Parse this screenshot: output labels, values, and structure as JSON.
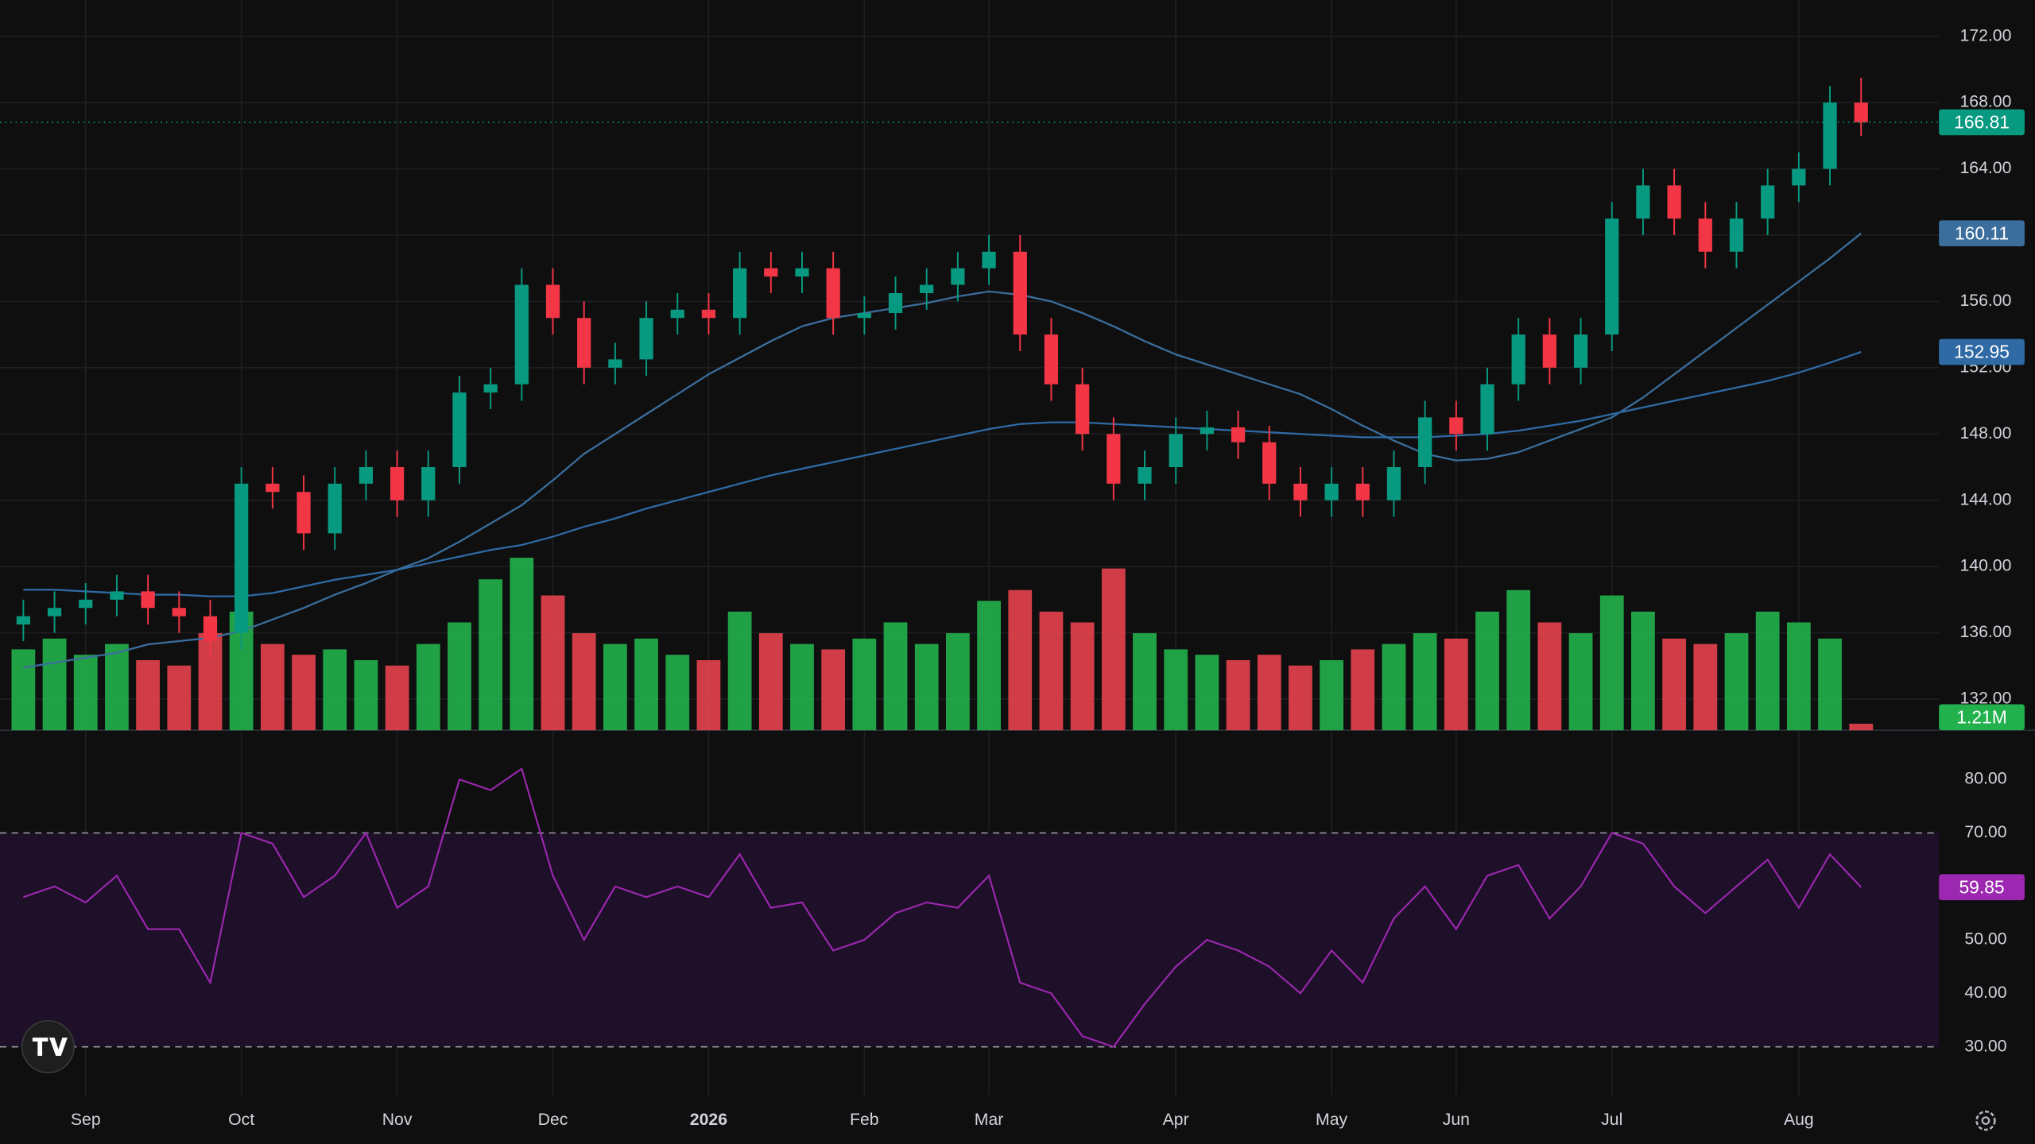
{
  "chart_data": {
    "type": "candlestick",
    "categories": [
      null,
      null,
      "Sep",
      null,
      null,
      null,
      null,
      "Oct",
      null,
      null,
      null,
      null,
      "Nov",
      null,
      null,
      null,
      null,
      "Dec",
      null,
      null,
      null,
      null,
      "2026",
      null,
      null,
      null,
      null,
      "Feb",
      null,
      null,
      null,
      "Mar",
      null,
      null,
      null,
      null,
      null,
      "Apr",
      null,
      null,
      null,
      null,
      "May",
      null,
      null,
      null,
      "Jun",
      null,
      null,
      null,
      null,
      "Jul",
      null,
      null,
      null,
      null,
      null,
      "Aug",
      null,
      null
    ],
    "open": [
      136.5,
      137.0,
      137.5,
      138.0,
      138.5,
      137.5,
      137.0,
      136.0,
      145.0,
      144.5,
      142.0,
      145.0,
      146.0,
      144.0,
      146.0,
      150.5,
      151.0,
      157.0,
      155.0,
      152.0,
      152.5,
      155.0,
      155.5,
      155.0,
      158.0,
      157.5,
      158.0,
      155.0,
      155.3,
      156.5,
      157.0,
      158.0,
      159.0,
      154.0,
      151.0,
      148.0,
      145.0,
      146.0,
      148.0,
      148.4,
      147.5,
      145.0,
      144.0,
      145.0,
      144.0,
      146.0,
      149.0,
      148.0,
      151.0,
      154.0,
      152.0,
      154.0,
      161.0,
      163.0,
      161.0,
      159.0,
      161.0,
      163.0,
      164.0,
      168.0
    ],
    "high": [
      138.0,
      138.5,
      139.0,
      139.5,
      139.5,
      138.5,
      138.0,
      146.0,
      146.0,
      145.5,
      146.0,
      147.0,
      147.0,
      147.0,
      151.5,
      152.0,
      158.0,
      158.0,
      156.0,
      153.5,
      156.0,
      156.5,
      156.5,
      159.0,
      159.0,
      159.0,
      159.0,
      156.3,
      157.5,
      158.0,
      159.0,
      160.0,
      160.0,
      155.0,
      152.0,
      149.0,
      147.0,
      149.0,
      149.4,
      149.4,
      148.5,
      146.0,
      146.0,
      146.0,
      147.0,
      150.0,
      150.0,
      152.0,
      155.0,
      155.0,
      155.0,
      162.0,
      164.0,
      164.0,
      162.0,
      162.0,
      164.0,
      165.0,
      169.0,
      169.5
    ],
    "low": [
      135.5,
      136.0,
      136.5,
      137.0,
      136.5,
      136.0,
      134.5,
      135.0,
      143.5,
      141.0,
      141.0,
      144.0,
      143.0,
      143.0,
      145.0,
      149.5,
      150.0,
      154.0,
      151.0,
      151.0,
      151.5,
      154.0,
      154.0,
      154.0,
      156.5,
      156.5,
      154.0,
      154.0,
      154.3,
      155.5,
      156.0,
      157.0,
      153.0,
      150.0,
      147.0,
      144.0,
      144.0,
      145.0,
      147.0,
      146.5,
      144.0,
      143.0,
      143.0,
      143.0,
      143.0,
      145.0,
      147.0,
      147.0,
      150.0,
      151.0,
      151.0,
      153.0,
      160.0,
      160.0,
      158.0,
      158.0,
      160.0,
      162.0,
      163.0,
      166.0
    ],
    "close": [
      137.0,
      137.5,
      138.0,
      138.5,
      137.5,
      137.0,
      135.5,
      145.0,
      144.5,
      142.0,
      145.0,
      146.0,
      144.0,
      146.0,
      150.5,
      151.0,
      157.0,
      155.0,
      152.0,
      152.5,
      155.0,
      155.5,
      155.0,
      158.0,
      157.5,
      158.0,
      155.0,
      155.3,
      156.5,
      157.0,
      158.0,
      159.0,
      154.0,
      151.0,
      148.0,
      145.0,
      146.0,
      148.0,
      148.4,
      147.5,
      145.0,
      144.0,
      145.0,
      144.0,
      146.0,
      149.0,
      148.0,
      151.0,
      154.0,
      152.0,
      154.0,
      161.0,
      163.0,
      161.0,
      159.0,
      161.0,
      163.0,
      164.0,
      168.0,
      166.81
    ],
    "up_color": "#089981",
    "down_color": "#f23645",
    "last_price_color": "#089981",
    "ylim": [
      130.12,
      174.19
    ],
    "yticks": [
      {
        "value": 132,
        "label": "132.00"
      },
      {
        "value": 136,
        "label": "136.00"
      },
      {
        "value": 140,
        "label": "140.00"
      },
      {
        "value": 144,
        "label": "144.00"
      },
      {
        "value": 148,
        "label": "148.00"
      },
      {
        "value": 152,
        "label": "152.00"
      },
      {
        "value": 156,
        "label": "156.00"
      },
      {
        "value": 160,
        "label": "160.00"
      },
      {
        "value": 164,
        "label": "164.00"
      },
      {
        "value": 168,
        "label": "168.00"
      },
      {
        "value": 172,
        "label": "172.00"
      }
    ],
    "grid": true,
    "moving_averages": [
      {
        "color": "#3b6e9c",
        "values": [
          133.9,
          134.2,
          134.5,
          134.8,
          135.3,
          135.5,
          135.7,
          136.1,
          136.8,
          137.5,
          138.3,
          139.0,
          139.8,
          140.5,
          141.5,
          142.6,
          143.7,
          145.2,
          146.8,
          148.0,
          149.2,
          150.4,
          151.6,
          152.6,
          153.6,
          154.5,
          155.0,
          155.3,
          155.6,
          155.9,
          156.3,
          156.6,
          156.4,
          156.0,
          155.3,
          154.5,
          153.6,
          152.8,
          152.2,
          151.6,
          151.0,
          150.4,
          149.5,
          148.5,
          147.6,
          146.8,
          146.4,
          146.5,
          146.9,
          147.6,
          148.3,
          149.0,
          150.2,
          151.6,
          153.0,
          154.4,
          155.8,
          157.2,
          158.6,
          160.11
        ]
      },
      {
        "color": "#2f6aa5",
        "values": [
          138.6,
          138.6,
          138.5,
          138.4,
          138.3,
          138.3,
          138.2,
          138.2,
          138.4,
          138.8,
          139.2,
          139.5,
          139.8,
          140.2,
          140.6,
          141.0,
          141.3,
          141.8,
          142.4,
          142.9,
          143.5,
          144.0,
          144.5,
          145.0,
          145.5,
          145.9,
          146.3,
          146.7,
          147.1,
          147.5,
          147.9,
          148.3,
          148.6,
          148.7,
          148.7,
          148.6,
          148.5,
          148.4,
          148.3,
          148.2,
          148.1,
          148.0,
          147.9,
          147.8,
          147.8,
          147.8,
          147.9,
          148.0,
          148.2,
          148.5,
          148.8,
          149.2,
          149.6,
          150.0,
          150.4,
          150.8,
          151.2,
          151.7,
          152.3,
          152.95
        ]
      }
    ],
    "volume": {
      "up_color": "#22b14c",
      "down_color": "#e5424d",
      "values": [
        15000000,
        17000000,
        14000000,
        16000000,
        13000000,
        12000000,
        18000000,
        22000000,
        16000000,
        14000000,
        15000000,
        13000000,
        12000000,
        16000000,
        20000000,
        28000000,
        32000000,
        25000000,
        18000000,
        16000000,
        17000000,
        14000000,
        13000000,
        22000000,
        18000000,
        16000000,
        15000000,
        17000000,
        20000000,
        16000000,
        18000000,
        24000000,
        26000000,
        22000000,
        20000000,
        30000000,
        18000000,
        15000000,
        14000000,
        13000000,
        14000000,
        12000000,
        13000000,
        15000000,
        16000000,
        18000000,
        17000000,
        22000000,
        26000000,
        20000000,
        18000000,
        25000000,
        22000000,
        17000000,
        16000000,
        18000000,
        22000000,
        20000000,
        17000000,
        1210000
      ],
      "last_value_label": "1.21M"
    },
    "rsi": {
      "color": "#9c27b0",
      "band_color": "#1f1029",
      "ylim": [
        20.8,
        89.2
      ],
      "yticks": [
        {
          "value": 30,
          "label": "30.00"
        },
        {
          "value": 40,
          "label": "40.00"
        },
        {
          "value": 50,
          "label": "50.00"
        },
        {
          "value": 70,
          "label": "70.00"
        },
        {
          "value": 80,
          "label": "80.00"
        }
      ],
      "band": [
        30,
        70
      ],
      "values": [
        58,
        60,
        57,
        62,
        52,
        52,
        42,
        70,
        68,
        58,
        62,
        70,
        56,
        60,
        80,
        78,
        82,
        62,
        50,
        60,
        58,
        60,
        58,
        66,
        56,
        57,
        48,
        50,
        55,
        57,
        56,
        62,
        42,
        40,
        32,
        30,
        38,
        45,
        50,
        48,
        45,
        40,
        48,
        42,
        54,
        60,
        52,
        62,
        64,
        54,
        60,
        70,
        68,
        60,
        55,
        60,
        65,
        56,
        66,
        59.85
      ]
    }
  }
}
